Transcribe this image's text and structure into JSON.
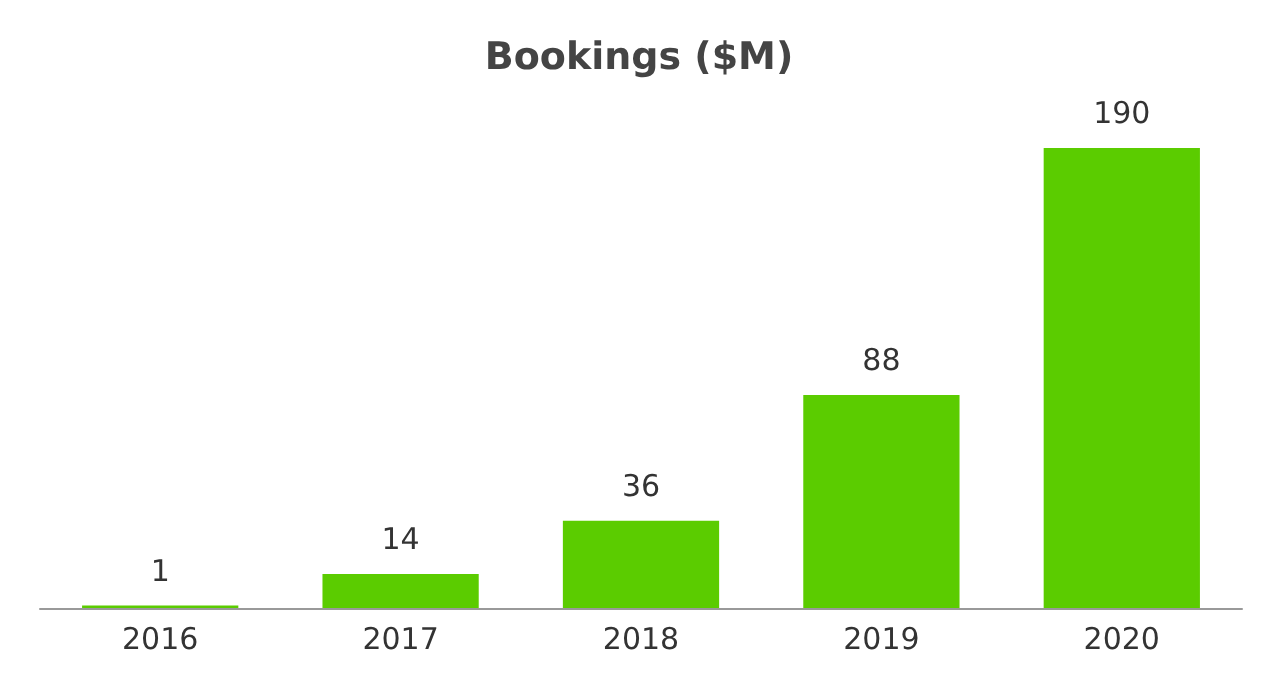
{
  "chart_data": {
    "type": "bar",
    "title": "Bookings ($M)",
    "categories": [
      "2016",
      "2017",
      "2018",
      "2019",
      "2020"
    ],
    "values": [
      1,
      14,
      36,
      88,
      190
    ],
    "color": "#5bcc00",
    "data_labels": true,
    "tick_labels": "x"
  }
}
